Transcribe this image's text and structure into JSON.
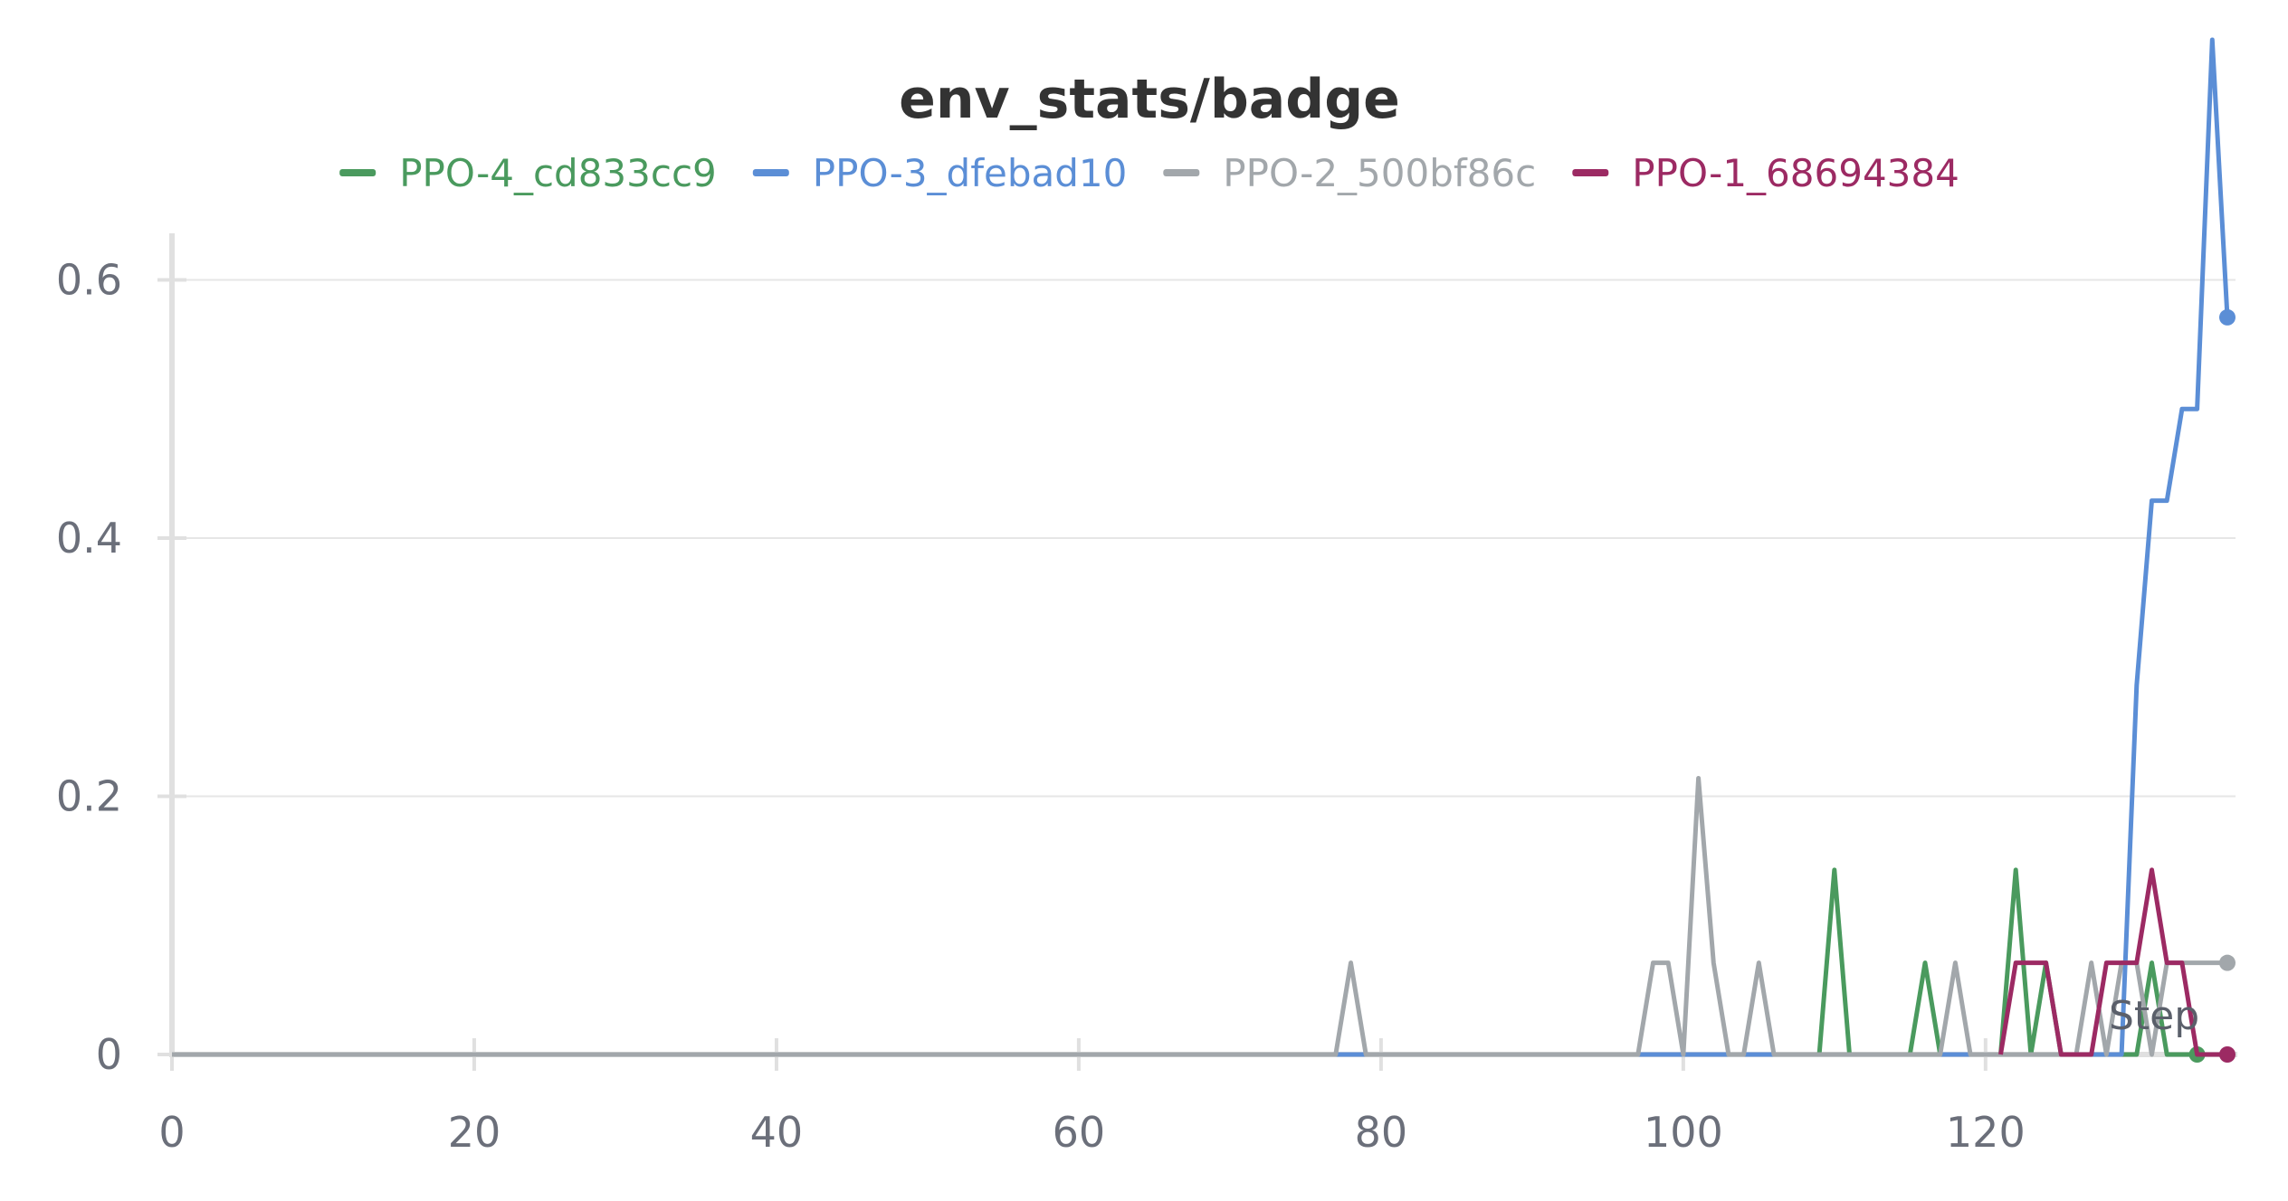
{
  "chart_data": {
    "type": "line",
    "title": "env_stats/badge",
    "xlabel": "Step",
    "ylabel": "",
    "xlim": [
      0,
      136
    ],
    "ylim": [
      0,
      0.8
    ],
    "x_ticks": [
      0,
      20,
      40,
      60,
      80,
      100,
      120
    ],
    "x_tick_labels": [
      "0",
      "20",
      "40",
      "60",
      "80",
      "100",
      "120"
    ],
    "y_ticks": [
      0,
      0.2,
      0.4,
      0.6
    ],
    "y_tick_labels": [
      "0",
      "0.2",
      "0.4",
      "0.6"
    ],
    "grid": true,
    "legend_position": "top-center",
    "series": [
      {
        "name": "PPO-4_cd833cc9",
        "color": "#4a9a5e",
        "points": [
          [
            0,
            0
          ],
          [
            109,
            0
          ],
          [
            110,
            0.143
          ],
          [
            111,
            0
          ],
          [
            115,
            0
          ],
          [
            116,
            0.071
          ],
          [
            117,
            0
          ],
          [
            121,
            0
          ],
          [
            122,
            0.143
          ],
          [
            123,
            0
          ],
          [
            124,
            0.071
          ],
          [
            125,
            0
          ],
          [
            130,
            0
          ],
          [
            131,
            0.071
          ],
          [
            132,
            0
          ],
          [
            134,
            0
          ]
        ]
      },
      {
        "name": "PPO-3_dfebad10",
        "color": "#5b8ed6",
        "points": [
          [
            0,
            0
          ],
          [
            129,
            0
          ],
          [
            130,
            0.286
          ],
          [
            131,
            0.429
          ],
          [
            132,
            0.429
          ],
          [
            133,
            0.5
          ],
          [
            134,
            0.5
          ],
          [
            135,
            0.786
          ],
          [
            136,
            0.571
          ]
        ]
      },
      {
        "name": "PPO-2_500bf86c",
        "color": "#a2a7ab",
        "points": [
          [
            0,
            0
          ],
          [
            77,
            0
          ],
          [
            78,
            0.071
          ],
          [
            79,
            0
          ],
          [
            97,
            0
          ],
          [
            98,
            0.071
          ],
          [
            99,
            0.071
          ],
          [
            100,
            0
          ],
          [
            101,
            0.214
          ],
          [
            102,
            0.071
          ],
          [
            103,
            0
          ],
          [
            104,
            0
          ],
          [
            105,
            0.071
          ],
          [
            106,
            0
          ],
          [
            117,
            0
          ],
          [
            118,
            0.071
          ],
          [
            119,
            0
          ],
          [
            126,
            0
          ],
          [
            127,
            0.071
          ],
          [
            128,
            0
          ],
          [
            129,
            0.071
          ],
          [
            130,
            0.071
          ],
          [
            131,
            0
          ],
          [
            132,
            0.071
          ],
          [
            136,
            0.071
          ]
        ]
      },
      {
        "name": "PPO-1_68694384",
        "color": "#9c2a63",
        "points": [
          [
            121,
            0
          ],
          [
            122,
            0.071
          ],
          [
            123,
            0.071
          ],
          [
            124,
            0.071
          ],
          [
            125,
            0
          ],
          [
            126,
            0
          ],
          [
            127,
            0
          ],
          [
            128,
            0.071
          ],
          [
            129,
            0.071
          ],
          [
            130,
            0.071
          ],
          [
            131,
            0.143
          ],
          [
            132,
            0.071
          ],
          [
            133,
            0.071
          ],
          [
            134,
            0
          ],
          [
            136,
            0
          ]
        ]
      }
    ]
  }
}
